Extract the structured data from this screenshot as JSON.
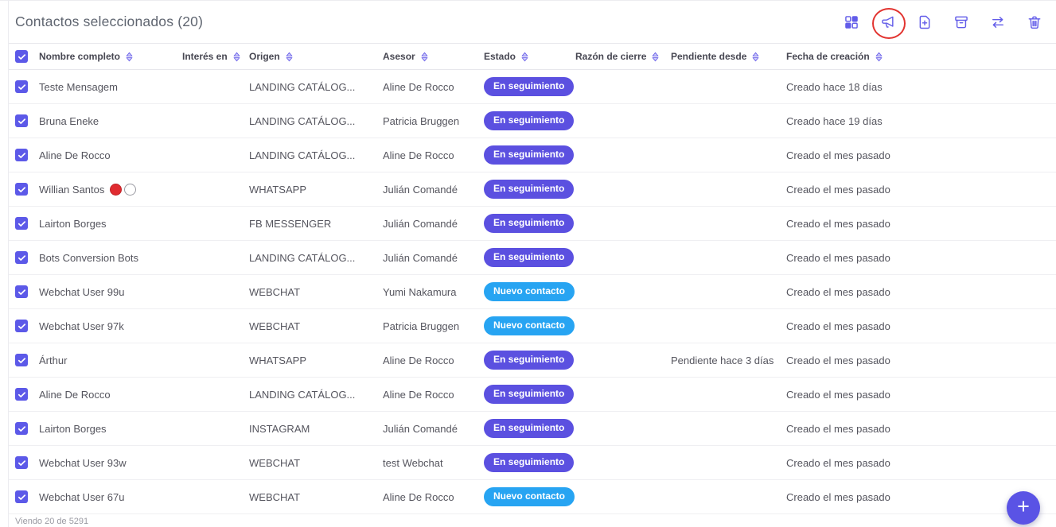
{
  "colors": {
    "accent": "#625ce9",
    "badge_purple": "#5b50e0",
    "badge_blue": "#27a4f2",
    "checkbox": "#5c59e8",
    "annotation_red": "#e23430",
    "fab": "#5a53e5"
  },
  "header": {
    "title": "Contactos seleccionados (20)",
    "icons": [
      {
        "id": "grid",
        "name": "grid-view-icon",
        "annotated": false
      },
      {
        "id": "megaphone",
        "name": "megaphone-icon",
        "annotated": true
      },
      {
        "id": "fileplus",
        "name": "add-file-icon",
        "annotated": false
      },
      {
        "id": "archive",
        "name": "archive-icon",
        "annotated": false
      },
      {
        "id": "transfer",
        "name": "transfer-icon",
        "annotated": false
      },
      {
        "id": "trash",
        "name": "trash-icon",
        "annotated": false
      }
    ]
  },
  "table": {
    "columns": [
      {
        "slug": "nombre-completo",
        "label": "Nombre completo",
        "sortable": true
      },
      {
        "slug": "interes-en",
        "label": "Interés en",
        "sortable": true
      },
      {
        "slug": "origen",
        "label": "Origen",
        "sortable": true
      },
      {
        "slug": "asesor",
        "label": "Asesor",
        "sortable": true
      },
      {
        "slug": "estado",
        "label": "Estado",
        "sortable": true
      },
      {
        "slug": "razon-de-cierre",
        "label": "Razón de cierre",
        "sortable": true
      },
      {
        "slug": "pendiente-desde",
        "label": "Pendiente desde",
        "sortable": true
      },
      {
        "slug": "fecha-de-creacion",
        "label": "Fecha de creación",
        "sortable": true
      }
    ],
    "select_all_checked": true,
    "rows": [
      {
        "selected": true,
        "name": "Teste Mensagem",
        "dots": [],
        "interes": "",
        "origen": "LANDING CATÁLOG...",
        "asesor": "Aline De Rocco",
        "estado": {
          "label": "En seguimiento",
          "type": "purple"
        },
        "razon": "",
        "pendiente": "",
        "fecha": "Creado hace 18 días"
      },
      {
        "selected": true,
        "name": "Bruna Eneke",
        "dots": [],
        "interes": "",
        "origen": "LANDING CATÁLOG...",
        "asesor": "Patricia Bruggen",
        "estado": {
          "label": "En seguimiento",
          "type": "purple"
        },
        "razon": "",
        "pendiente": "",
        "fecha": "Creado hace 19 días"
      },
      {
        "selected": true,
        "name": "Aline De Rocco",
        "dots": [],
        "interes": "",
        "origen": "LANDING CATÁLOG...",
        "asesor": "Aline De Rocco",
        "estado": {
          "label": "En seguimiento",
          "type": "purple"
        },
        "razon": "",
        "pendiente": "",
        "fecha": "Creado el mes pasado"
      },
      {
        "selected": true,
        "name": "Willian Santos",
        "dots": [
          "red",
          "white"
        ],
        "interes": "",
        "origen": "WHATSAPP",
        "asesor": "Julián Comandé",
        "estado": {
          "label": "En seguimiento",
          "type": "purple"
        },
        "razon": "",
        "pendiente": "",
        "fecha": "Creado el mes pasado"
      },
      {
        "selected": true,
        "name": "Lairton Borges",
        "dots": [],
        "interes": "",
        "origen": "FB MESSENGER",
        "asesor": "Julián Comandé",
        "estado": {
          "label": "En seguimiento",
          "type": "purple"
        },
        "razon": "",
        "pendiente": "",
        "fecha": "Creado el mes pasado"
      },
      {
        "selected": true,
        "name": "Bots Conversion Bots",
        "dots": [],
        "interes": "",
        "origen": "LANDING CATÁLOG...",
        "asesor": "Julián Comandé",
        "estado": {
          "label": "En seguimiento",
          "type": "purple"
        },
        "razon": "",
        "pendiente": "",
        "fecha": "Creado el mes pasado"
      },
      {
        "selected": true,
        "name": "Webchat User 99u",
        "dots": [],
        "interes": "",
        "origen": "WEBCHAT",
        "asesor": "Yumi Nakamura",
        "estado": {
          "label": "Nuevo contacto",
          "type": "blue"
        },
        "razon": "",
        "pendiente": "",
        "fecha": "Creado el mes pasado"
      },
      {
        "selected": true,
        "name": "Webchat User 97k",
        "dots": [],
        "interes": "",
        "origen": "WEBCHAT",
        "asesor": "Patricia Bruggen",
        "estado": {
          "label": "Nuevo contacto",
          "type": "blue"
        },
        "razon": "",
        "pendiente": "",
        "fecha": "Creado el mes pasado"
      },
      {
        "selected": true,
        "name": "Árthur",
        "dots": [],
        "interes": "",
        "origen": "WHATSAPP",
        "asesor": "Aline De Rocco",
        "estado": {
          "label": "En seguimiento",
          "type": "purple"
        },
        "razon": "",
        "pendiente": "Pendiente hace 3 días",
        "fecha": "Creado el mes pasado"
      },
      {
        "selected": true,
        "name": "Aline De Rocco",
        "dots": [],
        "interes": "",
        "origen": "LANDING CATÁLOG...",
        "asesor": "Aline De Rocco",
        "estado": {
          "label": "En seguimiento",
          "type": "purple"
        },
        "razon": "",
        "pendiente": "",
        "fecha": "Creado el mes pasado"
      },
      {
        "selected": true,
        "name": "Lairton Borges",
        "dots": [],
        "interes": "",
        "origen": "INSTAGRAM",
        "asesor": "Julián Comandé",
        "estado": {
          "label": "En seguimiento",
          "type": "purple"
        },
        "razon": "",
        "pendiente": "",
        "fecha": "Creado el mes pasado"
      },
      {
        "selected": true,
        "name": "Webchat User 93w",
        "dots": [],
        "interes": "",
        "origen": "WEBCHAT",
        "asesor": "test Webchat",
        "estado": {
          "label": "En seguimiento",
          "type": "purple"
        },
        "razon": "",
        "pendiente": "",
        "fecha": "Creado el mes pasado"
      },
      {
        "selected": true,
        "name": "Webchat User 67u",
        "dots": [],
        "interes": "",
        "origen": "WEBCHAT",
        "asesor": "Aline De Rocco",
        "estado": {
          "label": "Nuevo contacto",
          "type": "blue"
        },
        "razon": "",
        "pendiente": "",
        "fecha": "Creado el mes pasado"
      }
    ]
  },
  "footer": {
    "summary": "Viendo 20 de 5291"
  },
  "fab": {
    "label": "+"
  }
}
